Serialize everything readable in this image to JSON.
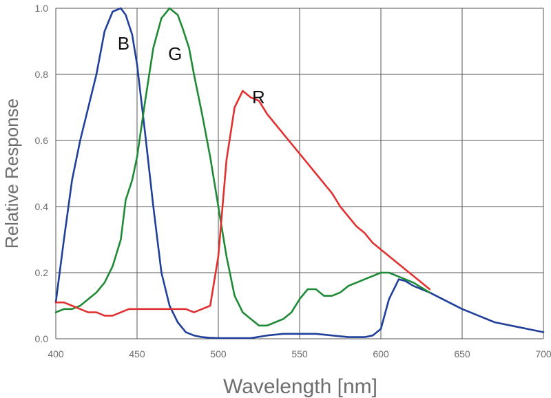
{
  "chart_data": {
    "type": "line",
    "xlabel": "Wavelength [nm]",
    "ylabel": "Relative Response",
    "xlim": [
      400,
      700
    ],
    "ylim": [
      0,
      1.0
    ],
    "x_ticks": [
      "400",
      "450",
      "500",
      "550",
      "600",
      "650",
      "700"
    ],
    "y_ticks": [
      "0.0",
      "0.2",
      "0.4",
      "0.6",
      "0.8",
      "1.0"
    ],
    "grid": true,
    "series": [
      {
        "name": "B",
        "color": "#1f3f9a",
        "x": [
          400,
          405,
          410,
          415,
          420,
          425,
          430,
          435,
          440,
          443,
          447,
          450,
          455,
          460,
          465,
          470,
          475,
          480,
          485,
          490,
          495,
          500,
          510,
          520,
          530,
          540,
          550,
          560,
          570,
          580,
          590,
          595,
          600,
          605,
          611,
          615,
          620,
          630,
          640,
          650,
          655,
          660,
          670,
          680,
          690,
          700
        ],
        "y": [
          0.11,
          0.3,
          0.48,
          0.6,
          0.7,
          0.8,
          0.93,
          0.99,
          1.0,
          0.98,
          0.92,
          0.83,
          0.62,
          0.4,
          0.2,
          0.1,
          0.05,
          0.02,
          0.01,
          0.005,
          0.003,
          0.002,
          0.002,
          0.002,
          0.01,
          0.015,
          0.015,
          0.015,
          0.01,
          0.005,
          0.005,
          0.01,
          0.03,
          0.12,
          0.18,
          0.175,
          0.16,
          0.14,
          0.115,
          0.09,
          0.08,
          0.07,
          0.05,
          0.04,
          0.03,
          0.02
        ]
      },
      {
        "name": "G",
        "color": "#1f8a36",
        "x": [
          400,
          405,
          410,
          415,
          420,
          425,
          430,
          435,
          440,
          443,
          447,
          450,
          455,
          460,
          465,
          470,
          475,
          478,
          482,
          485,
          490,
          495,
          500,
          505,
          510,
          515,
          520,
          525,
          530,
          535,
          540,
          545,
          550,
          555,
          560,
          565,
          570,
          575,
          580,
          585,
          590,
          595,
          600,
          605,
          610,
          615,
          620,
          630
        ],
        "y": [
          0.08,
          0.09,
          0.09,
          0.1,
          0.12,
          0.14,
          0.17,
          0.22,
          0.3,
          0.42,
          0.48,
          0.55,
          0.72,
          0.88,
          0.97,
          1.0,
          0.98,
          0.94,
          0.88,
          0.8,
          0.68,
          0.55,
          0.4,
          0.25,
          0.13,
          0.08,
          0.06,
          0.04,
          0.04,
          0.05,
          0.06,
          0.08,
          0.12,
          0.15,
          0.15,
          0.13,
          0.13,
          0.14,
          0.16,
          0.17,
          0.18,
          0.19,
          0.2,
          0.2,
          0.19,
          0.18,
          0.17,
          0.14
        ]
      },
      {
        "name": "R",
        "color": "#e03030",
        "x": [
          400,
          405,
          410,
          415,
          420,
          425,
          430,
          435,
          440,
          445,
          450,
          455,
          460,
          465,
          470,
          475,
          480,
          485,
          490,
          495,
          500,
          505,
          510,
          515,
          520,
          525,
          530,
          535,
          540,
          545,
          550,
          555,
          560,
          565,
          570,
          575,
          580,
          585,
          590,
          595,
          600,
          605,
          610,
          615,
          620,
          625,
          630
        ],
        "y": [
          0.11,
          0.11,
          0.1,
          0.09,
          0.08,
          0.08,
          0.07,
          0.07,
          0.08,
          0.09,
          0.09,
          0.09,
          0.09,
          0.09,
          0.09,
          0.09,
          0.09,
          0.08,
          0.09,
          0.1,
          0.25,
          0.54,
          0.7,
          0.75,
          0.73,
          0.72,
          0.68,
          0.65,
          0.62,
          0.59,
          0.56,
          0.53,
          0.5,
          0.47,
          0.44,
          0.4,
          0.37,
          0.34,
          0.32,
          0.29,
          0.27,
          0.25,
          0.23,
          0.21,
          0.19,
          0.17,
          0.15
        ]
      }
    ]
  }
}
